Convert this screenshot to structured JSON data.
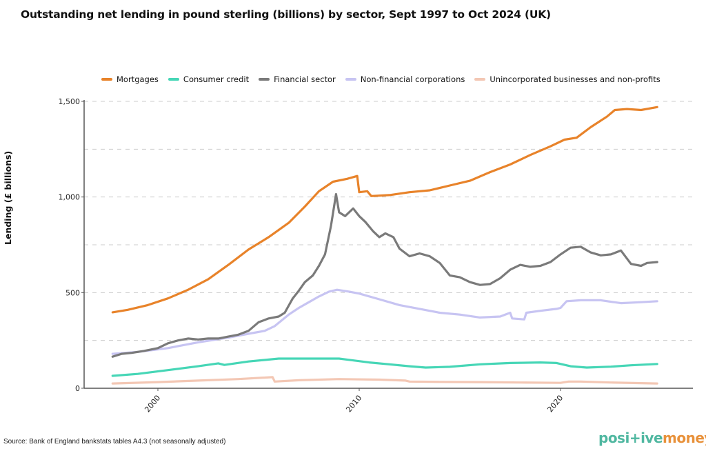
{
  "chart_data": {
    "type": "line",
    "title": "Outstanding net lending in pound sterling (billions) by sector, Sept 1997 to Oct 2024 (UK)",
    "xlabel": "",
    "ylabel": "Lending (£ billions)",
    "xlim": [
      1997.3,
      2026.3
    ],
    "ylim": [
      0,
      1500
    ],
    "yticks": [
      0,
      500,
      1000,
      1500
    ],
    "ytick_labels": [
      "0",
      "500",
      "1,000",
      "1,500"
    ],
    "ygrid_minor": [
      250,
      750,
      1250
    ],
    "xticks": [
      2000,
      2010,
      2020
    ],
    "xtick_labels": [
      "2000",
      "2010",
      "2020"
    ],
    "grid": "horizontal dashed",
    "legend_position": "top",
    "series": [
      {
        "name": "Mortgages",
        "color": "#e8832a",
        "x": [
          1997.75,
          1998.5,
          1999.5,
          2000.5,
          2001.5,
          2002.5,
          2003.5,
          2004.5,
          2005.5,
          2006.5,
          2007.3,
          2008.0,
          2008.7,
          2009.4,
          2009.9,
          2010.0,
          2010.4,
          2010.6,
          2011.5,
          2012.5,
          2013.5,
          2014.5,
          2015.5,
          2016.5,
          2017.5,
          2018.5,
          2019.5,
          2020.2,
          2020.8,
          2021.5,
          2022.3,
          2022.7,
          2023.3,
          2024.0,
          2024.8
        ],
        "values": [
          397,
          410,
          435,
          470,
          515,
          570,
          645,
          725,
          790,
          865,
          950,
          1030,
          1080,
          1095,
          1110,
          1025,
          1030,
          1005,
          1010,
          1025,
          1035,
          1060,
          1085,
          1130,
          1170,
          1220,
          1265,
          1300,
          1310,
          1365,
          1420,
          1455,
          1460,
          1455,
          1470
        ]
      },
      {
        "name": "Consumer credit",
        "color": "#46d6b6",
        "x": [
          1997.75,
          1999.0,
          2000.5,
          2002.0,
          2003.0,
          2003.3,
          2004.5,
          2006.0,
          2007.5,
          2009.0,
          2010.5,
          2011.5,
          2012.5,
          2013.3,
          2014.5,
          2016.0,
          2017.5,
          2019.0,
          2019.8,
          2020.5,
          2021.3,
          2022.5,
          2023.5,
          2024.8
        ],
        "values": [
          65,
          75,
          95,
          115,
          130,
          122,
          140,
          155,
          155,
          155,
          135,
          125,
          115,
          108,
          112,
          125,
          132,
          135,
          132,
          115,
          108,
          113,
          120,
          127
        ]
      },
      {
        "name": "Financial sector",
        "color": "#7a7a7a",
        "x": [
          1997.75,
          1998.2,
          1998.7,
          1999.3,
          2000.0,
          2000.5,
          2001.0,
          2001.5,
          2002.0,
          2002.5,
          2003.0,
          2003.5,
          2004.0,
          2004.5,
          2005.0,
          2005.5,
          2006.0,
          2006.3,
          2006.7,
          2007.0,
          2007.3,
          2007.7,
          2008.0,
          2008.3,
          2008.6,
          2008.85,
          2009.0,
          2009.3,
          2009.7,
          2010.0,
          2010.3,
          2010.7,
          2011.0,
          2011.3,
          2011.7,
          2012.0,
          2012.5,
          2013.0,
          2013.5,
          2014.0,
          2014.5,
          2015.0,
          2015.5,
          2016.0,
          2016.5,
          2017.0,
          2017.5,
          2018.0,
          2018.5,
          2019.0,
          2019.5,
          2020.0,
          2020.5,
          2021.0,
          2021.5,
          2022.0,
          2022.5,
          2023.0,
          2023.5,
          2024.0,
          2024.3,
          2024.8
        ],
        "values": [
          165,
          180,
          185,
          195,
          210,
          235,
          250,
          260,
          255,
          260,
          260,
          270,
          280,
          300,
          345,
          365,
          375,
          395,
          470,
          510,
          555,
          590,
          640,
          700,
          850,
          1015,
          920,
          900,
          940,
          900,
          870,
          820,
          790,
          810,
          790,
          730,
          690,
          705,
          690,
          655,
          590,
          580,
          555,
          540,
          545,
          575,
          620,
          645,
          635,
          640,
          660,
          700,
          735,
          740,
          710,
          695,
          700,
          720,
          650,
          640,
          655,
          660
        ]
      },
      {
        "name": "Non-financial corporations",
        "color": "#c7c4f2",
        "x": [
          1997.75,
          1999.0,
          2000.5,
          2002.0,
          2003.5,
          2004.5,
          2005.3,
          2005.8,
          2006.5,
          2007.0,
          2007.5,
          2008.0,
          2008.5,
          2008.9,
          2009.5,
          2010.0,
          2011.0,
          2012.0,
          2013.0,
          2014.0,
          2015.0,
          2016.0,
          2017.0,
          2017.5,
          2017.6,
          2018.2,
          2018.3,
          2019.0,
          2019.8,
          2020.0,
          2020.3,
          2021.0,
          2022.0,
          2023.0,
          2024.0,
          2024.8
        ],
        "values": [
          180,
          190,
          210,
          240,
          265,
          285,
          300,
          325,
          385,
          420,
          450,
          480,
          505,
          515,
          505,
          495,
          465,
          435,
          415,
          395,
          385,
          370,
          375,
          395,
          365,
          360,
          395,
          405,
          415,
          420,
          455,
          460,
          460,
          445,
          450,
          455
        ]
      },
      {
        "name": "Unincorporated businesses and non-profits",
        "color": "#f3c7b4",
        "x": [
          1997.75,
          2000.0,
          2002.0,
          2004.0,
          2005.7,
          2005.8,
          2007.0,
          2009.0,
          2011.0,
          2012.3,
          2012.5,
          2014.0,
          2016.0,
          2018.0,
          2020.0,
          2020.4,
          2021.0,
          2022.5,
          2024.8
        ],
        "values": [
          25,
          32,
          40,
          48,
          58,
          35,
          42,
          48,
          45,
          40,
          35,
          33,
          32,
          30,
          28,
          35,
          35,
          30,
          25
        ]
      }
    ]
  },
  "footer": {
    "source": "Source: Bank of England bankstats tables A4.3 (not seasonally adjusted)",
    "logo_part1": "posi+ive",
    "logo_part2": "money",
    "logo_color1": "#4fb7a0",
    "logo_color2": "#e8913a"
  }
}
